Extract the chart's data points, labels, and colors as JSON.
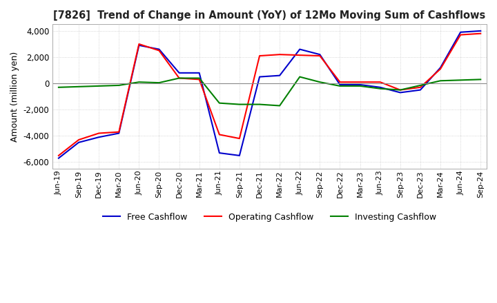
{
  "title": "[7826]  Trend of Change in Amount (YoY) of 12Mo Moving Sum of Cashflows",
  "ylabel": "Amount (million yen)",
  "background_color": "#ffffff",
  "grid_color": "#c8c8c8",
  "x_labels": [
    "Jun-19",
    "Sep-19",
    "Dec-19",
    "Mar-20",
    "Jun-20",
    "Sep-20",
    "Dec-20",
    "Mar-21",
    "Jun-21",
    "Sep-21",
    "Dec-21",
    "Mar-22",
    "Jun-22",
    "Sep-22",
    "Dec-22",
    "Mar-23",
    "Jun-23",
    "Sep-23",
    "Dec-23",
    "Mar-24",
    "Jun-24",
    "Sep-24"
  ],
  "operating": [
    -5500,
    -4300,
    -3800,
    -3700,
    3000,
    2500,
    400,
    300,
    -3900,
    -4200,
    2100,
    2200,
    2150,
    2100,
    100,
    100,
    100,
    -500,
    -300,
    1100,
    3700,
    3800
  ],
  "investing": [
    -300,
    -250,
    -200,
    -150,
    100,
    50,
    400,
    400,
    -1500,
    -1600,
    -1600,
    -1700,
    500,
    100,
    -200,
    -200,
    -400,
    -500,
    -150,
    200,
    250,
    300
  ],
  "free": [
    -5700,
    -4500,
    -4100,
    -3800,
    2900,
    2600,
    800,
    800,
    -5300,
    -5500,
    500,
    600,
    2600,
    2200,
    -100,
    -100,
    -300,
    -700,
    -500,
    1200,
    3900,
    4000
  ],
  "ylim": [
    -6500,
    4500
  ],
  "yticks": [
    -6000,
    -4000,
    -2000,
    0,
    2000,
    4000
  ],
  "line_colors": {
    "operating": "#ff0000",
    "investing": "#008000",
    "free": "#0000cc"
  },
  "legend_labels": {
    "operating": "Operating Cashflow",
    "investing": "Investing Cashflow",
    "free": "Free Cashflow"
  }
}
